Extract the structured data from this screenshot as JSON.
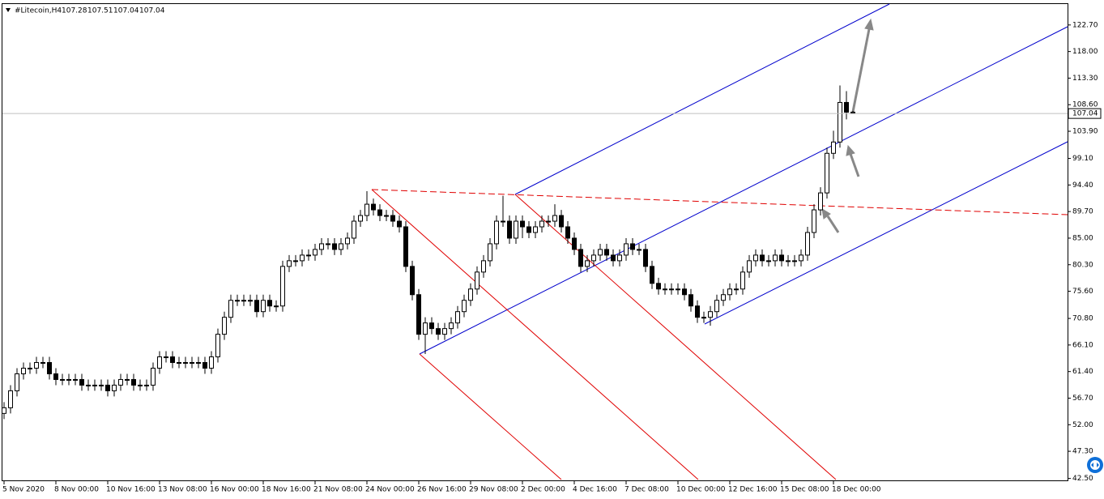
{
  "chart_data": {
    "type": "candlestick",
    "title": "#Litecoin,H4",
    "categories": [
      "5 Nov 2020",
      null,
      null,
      null,
      null,
      null,
      null,
      null,
      "8 Nov 00:00",
      null,
      null,
      null,
      null,
      null,
      null,
      null,
      "10 Nov 16:00",
      null,
      null,
      null,
      null,
      null,
      null,
      null,
      "13 Nov 08:00",
      null,
      null,
      null,
      null,
      null,
      null,
      null,
      "16 Nov 00:00",
      null,
      null,
      null,
      null,
      null,
      null,
      null,
      "18 Nov 16:00",
      null,
      null,
      null,
      null,
      null,
      null,
      null,
      "21 Nov 08:00",
      null,
      null,
      null,
      null,
      null,
      null,
      null,
      "24 Nov 00:00",
      null,
      null,
      null,
      null,
      null,
      null,
      null,
      "26 Nov 16:00",
      null,
      null,
      null,
      null,
      null,
      null,
      null,
      "29 Nov 08:00",
      null,
      null,
      null,
      null,
      null,
      null,
      null,
      "2 Dec 00:00",
      null,
      null,
      null,
      null,
      null,
      null,
      null,
      "4 Dec 16:00",
      null,
      null,
      null,
      null,
      null,
      null,
      null,
      "7 Dec 08:00",
      null,
      null,
      null,
      null,
      null,
      null,
      null,
      "10 Dec 00:00",
      null,
      null,
      null,
      null,
      null,
      null,
      null,
      "12 Dec 16:00",
      null,
      null,
      null,
      null,
      null,
      null,
      null,
      "15 Dec 08:00",
      null,
      null,
      null,
      null,
      null,
      null,
      null,
      "18 Dec 00:00",
      null,
      null,
      null
    ],
    "open": [
      54,
      55,
      58,
      61,
      62,
      62,
      63,
      63,
      61,
      60,
      60,
      60,
      60,
      59,
      59,
      59,
      59,
      58,
      59,
      60,
      60,
      59,
      59,
      59,
      62,
      64,
      64,
      63,
      63,
      63,
      63,
      63,
      62,
      64,
      68,
      71,
      74,
      74,
      74,
      74,
      72,
      74,
      73,
      73,
      80,
      81,
      81,
      82,
      82,
      83,
      84,
      84,
      83,
      84,
      85,
      88,
      89,
      91,
      90,
      89,
      89,
      88,
      87,
      80,
      75,
      68,
      70,
      69,
      68,
      69,
      70,
      72,
      74,
      76,
      79,
      81,
      84,
      88,
      88,
      85,
      88,
      87,
      86,
      87,
      88,
      88,
      89,
      87,
      85,
      83,
      80,
      81,
      82,
      83,
      82,
      81,
      82,
      84,
      83,
      83,
      80,
      77,
      76,
      76,
      76,
      76,
      75,
      73,
      71,
      71,
      72,
      74,
      75,
      76,
      76,
      79,
      81,
      82,
      81,
      81,
      82,
      81,
      81,
      81,
      82,
      86,
      90,
      93,
      100,
      102,
      109,
      107.28
    ],
    "high": [
      56,
      59,
      62,
      63,
      63,
      64,
      64,
      64,
      62,
      61,
      61,
      61,
      61,
      60,
      60,
      60,
      60,
      60,
      61,
      61,
      61,
      60,
      60,
      63,
      65,
      65,
      65,
      64,
      64,
      64,
      64,
      64,
      65,
      69,
      72,
      75,
      75,
      75,
      75,
      75,
      75,
      75,
      74,
      81,
      82,
      82,
      83,
      83,
      84,
      85,
      85,
      85,
      85,
      86,
      89,
      90,
      93.3,
      92,
      91,
      90,
      90,
      89,
      88,
      81,
      76,
      71,
      71,
      70,
      70,
      71,
      73,
      75,
      77,
      80,
      82,
      85,
      89,
      92.5,
      89,
      89,
      89,
      88,
      88,
      89,
      89,
      91,
      90,
      88,
      86,
      84,
      82,
      83,
      84,
      84,
      83,
      83,
      85,
      85,
      84,
      84,
      81,
      78,
      77,
      77,
      77,
      77,
      76,
      74,
      72,
      73,
      75,
      76,
      77,
      77,
      80,
      82,
      83,
      83,
      82,
      83,
      83,
      82,
      82,
      83,
      87,
      91,
      94,
      101,
      104,
      112,
      111,
      107.51
    ],
    "low": [
      53,
      54,
      57,
      60,
      61,
      61,
      62,
      60,
      59,
      59,
      59,
      59,
      58,
      58,
      58,
      58,
      57,
      57,
      58,
      59,
      58,
      58,
      58,
      58,
      61,
      63,
      62,
      62,
      62,
      62,
      62,
      61,
      61,
      63,
      67,
      70,
      73,
      73,
      73,
      71,
      71,
      72,
      72,
      72,
      79,
      80,
      80,
      81,
      81,
      82,
      83,
      82,
      82,
      83,
      84,
      87,
      88,
      89,
      88,
      88,
      87,
      86,
      79,
      74,
      67,
      64.5,
      68,
      67,
      67,
      68,
      69,
      71,
      73,
      75,
      78,
      80,
      83,
      87,
      84,
      84,
      85,
      85,
      85,
      86,
      87,
      87,
      86,
      84,
      82,
      79,
      79,
      80,
      81,
      81,
      80,
      80,
      81,
      82,
      82,
      79,
      76,
      75,
      75,
      75,
      75,
      74,
      72,
      70,
      70,
      69.5,
      71,
      73,
      74,
      75,
      75,
      78,
      80,
      80,
      80,
      80,
      80,
      80,
      80,
      80,
      81,
      85,
      89,
      92,
      99,
      101,
      106,
      107.04
    ],
    "close": [
      55,
      58,
      61,
      62,
      62,
      63,
      63,
      61,
      60,
      60,
      60,
      60,
      59,
      59,
      59,
      59,
      58,
      59,
      60,
      60,
      59,
      59,
      59,
      62,
      64,
      64,
      63,
      63,
      63,
      63,
      63,
      62,
      64,
      68,
      71,
      74,
      74,
      74,
      74,
      72,
      74,
      73,
      73,
      80,
      81,
      81,
      82,
      82,
      83,
      84,
      84,
      83,
      84,
      85,
      88,
      89,
      91,
      90,
      89,
      89,
      88,
      87,
      80,
      75,
      68,
      70,
      69,
      68,
      69,
      70,
      72,
      74,
      76,
      79,
      81,
      84,
      88,
      88,
      85,
      88,
      87,
      86,
      87,
      88,
      88,
      89,
      87,
      85,
      83,
      80,
      81,
      82,
      83,
      82,
      81,
      82,
      84,
      83,
      83,
      80,
      77,
      76,
      76,
      76,
      76,
      75,
      73,
      71,
      71,
      72,
      74,
      75,
      76,
      76,
      79,
      81,
      82,
      81,
      81,
      82,
      81,
      81,
      81,
      82,
      86,
      90,
      93,
      100,
      102,
      109,
      107.28,
      107.04
    ],
    "ylim": [
      42.3,
      126.4
    ],
    "yticks": [
      {
        "value": 122.7,
        "label": "122.70"
      },
      {
        "value": 118,
        "label": "118.00"
      },
      {
        "value": 113.3,
        "label": "113.30"
      },
      {
        "value": 108.6,
        "label": "108.60"
      },
      {
        "value": 103.9,
        "label": "103.90"
      },
      {
        "value": 99.1,
        "label": "99.10"
      },
      {
        "value": 94.4,
        "label": "94.40"
      },
      {
        "value": 89.7,
        "label": "89.70"
      },
      {
        "value": 85,
        "label": "85.00"
      },
      {
        "value": 80.3,
        "label": "80.30"
      },
      {
        "value": 75.6,
        "label": "75.60"
      },
      {
        "value": 70.8,
        "label": "70.80"
      },
      {
        "value": 66.1,
        "label": "66.10"
      },
      {
        "value": 61.4,
        "label": "61.40"
      },
      {
        "value": 56.7,
        "label": "56.70"
      },
      {
        "value": 52,
        "label": "52.00"
      },
      {
        "value": 47.3,
        "label": "47.30"
      },
      {
        "value": 42.5,
        "label": "42.50"
      }
    ],
    "grid": false,
    "color": "#000000"
  }
}
